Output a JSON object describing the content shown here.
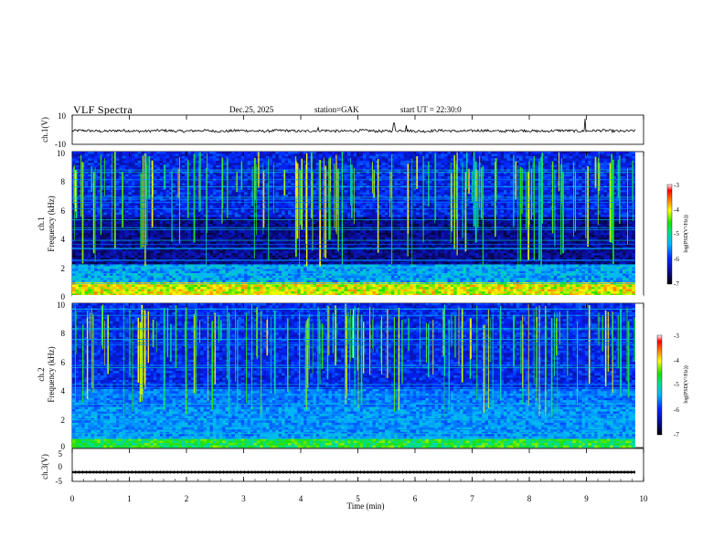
{
  "header": {
    "title": "VLF Spectra",
    "date": "Dec.25, 2025",
    "station": "station=GAK",
    "start_ut": "start  UT  =   22:30:0"
  },
  "chart_data": [
    {
      "type": "line",
      "panel": "ch1",
      "ylabel": "ch.1(V)",
      "ytick_labels": [
        "10",
        "-10"
      ],
      "ylim": [
        -10,
        10
      ],
      "xlim": [
        0,
        10
      ],
      "series": [
        {
          "values_desc": "waveform",
          "level": -0.8,
          "spikes": [
            [
              5.63,
              4.5
            ],
            [
              5.85,
              3.0
            ],
            [
              8.98,
              7.5
            ],
            [
              4.3,
              1.5
            ]
          ]
        }
      ]
    },
    {
      "type": "heatmap",
      "panel": "ch1",
      "ylabel": "ch.1\nFrequency (kHz)",
      "ytick_labels": [
        "0",
        "2",
        "4",
        "6",
        "8",
        "10"
      ],
      "ylim": [
        0,
        10
      ],
      "xlim": [
        0,
        9.85
      ],
      "colorbar": {
        "label": "log(PSD(V²/Hz))",
        "tick_labels": [
          "-3",
          "-4",
          "-5",
          "-6",
          "-7"
        ],
        "range": [
          -7,
          -3
        ]
      }
    },
    {
      "type": "heatmap",
      "panel": "ch2",
      "ylabel": "ch.2\nFrequency (kHz)",
      "ytick_labels": [
        "0",
        "2",
        "4",
        "6",
        "8",
        "10"
      ],
      "ylim": [
        0,
        10
      ],
      "xlim": [
        0,
        9.85
      ],
      "colorbar": {
        "label": "log(PSD(V²/Hz))",
        "tick_labels": [
          "-3",
          "-4",
          "-5",
          "-6",
          "-7"
        ],
        "range": [
          -7,
          -3
        ]
      }
    },
    {
      "type": "line",
      "panel": "ch3",
      "ylabel": "ch.3(V)",
      "ytick_labels": [
        "5",
        "0",
        "-5"
      ],
      "ylim": [
        -5,
        5
      ],
      "xlim": [
        0,
        10
      ],
      "xlabel": "Time (min)",
      "xtick_labels": [
        "0",
        "1",
        "2",
        "3",
        "4",
        "5",
        "6",
        "7",
        "8",
        "9",
        "10"
      ],
      "series": [
        {
          "values_desc": "constant",
          "level": -2.2
        }
      ]
    }
  ]
}
